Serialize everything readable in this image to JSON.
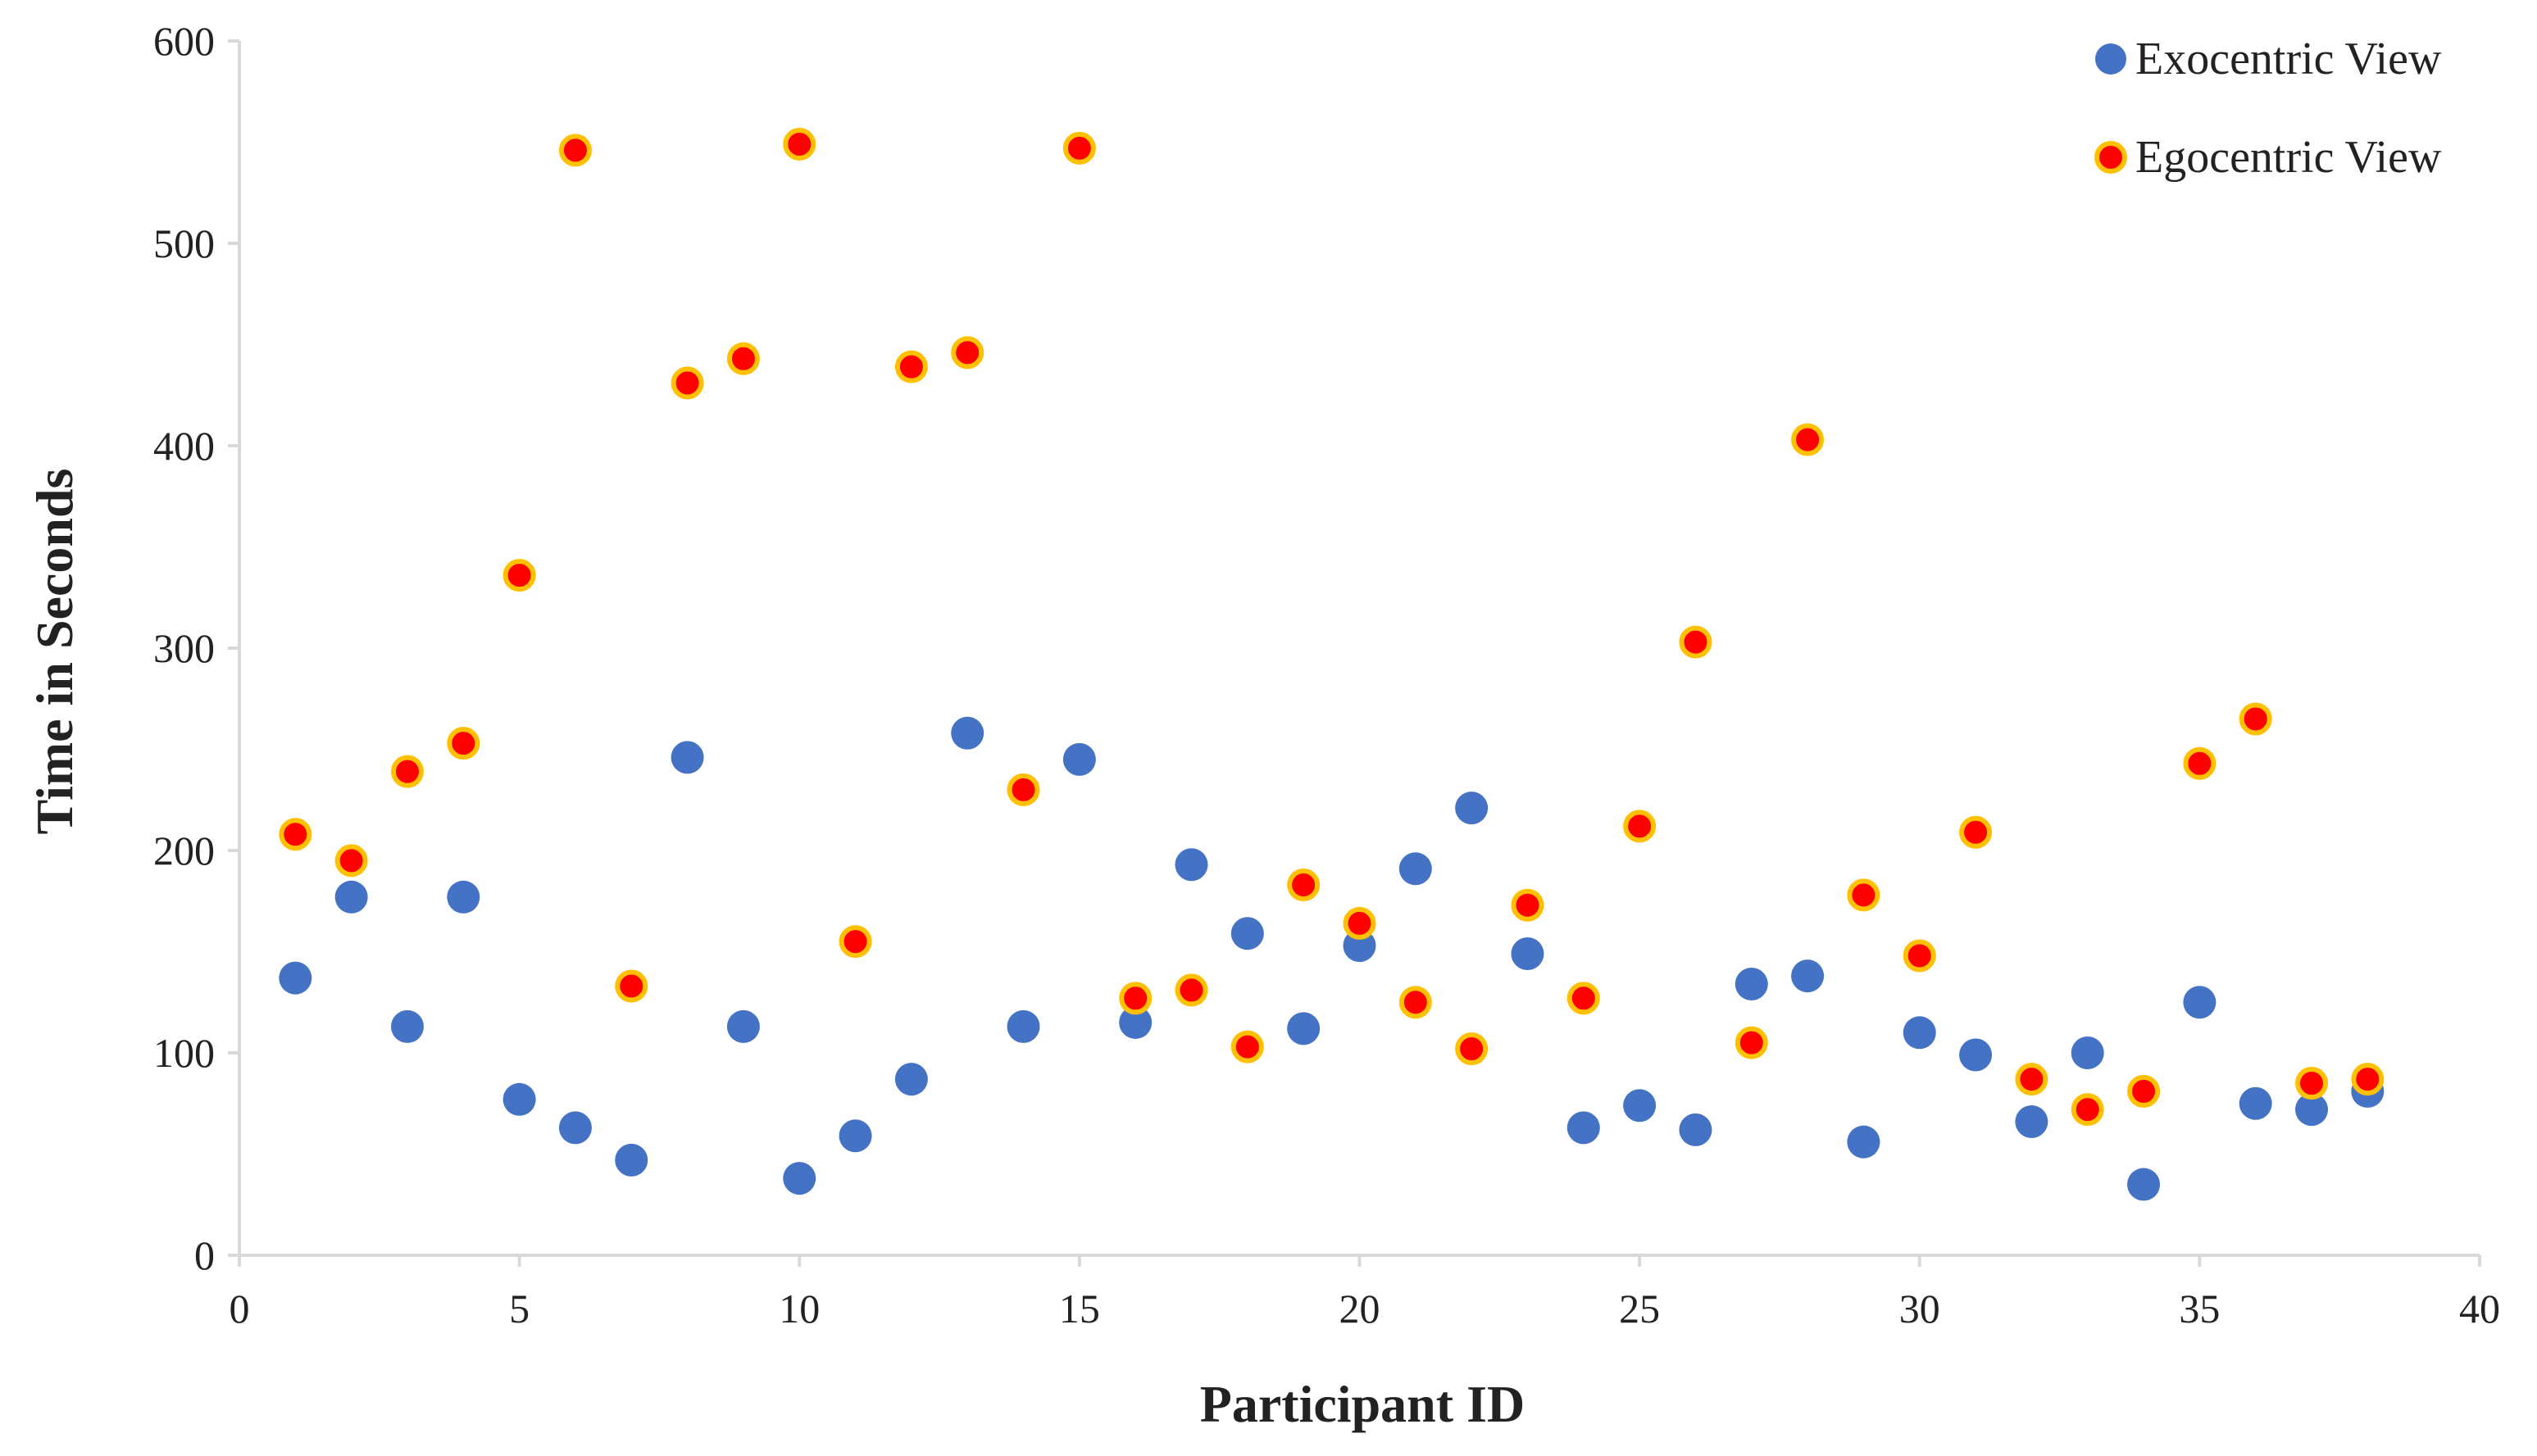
{
  "chart_data": {
    "type": "scatter",
    "title": "",
    "xlabel": "Participant ID",
    "ylabel": "Time in Seconds",
    "xlim": [
      0,
      40
    ],
    "ylim": [
      0,
      600
    ],
    "xticks": [
      0,
      5,
      10,
      15,
      20,
      25,
      30,
      35,
      40
    ],
    "yticks": [
      0,
      100,
      200,
      300,
      400,
      500,
      600
    ],
    "grid": false,
    "legend_position": "top-right",
    "x": [
      1,
      2,
      3,
      4,
      5,
      6,
      7,
      8,
      9,
      10,
      11,
      12,
      13,
      14,
      15,
      16,
      17,
      18,
      19,
      20,
      21,
      22,
      23,
      24,
      25,
      26,
      27,
      28,
      29,
      30,
      31,
      32,
      33,
      34,
      35,
      36,
      37,
      38
    ],
    "series": [
      {
        "name": "Exocentric View",
        "color": "#4472c4",
        "values": [
          137,
          177,
          113,
          177,
          77,
          63,
          47,
          246,
          113,
          38,
          59,
          87,
          258,
          113,
          245,
          115,
          193,
          159,
          112,
          153,
          191,
          221,
          149,
          63,
          74,
          62,
          134,
          138,
          56,
          110,
          99,
          66,
          100,
          35,
          125,
          75,
          72,
          81
        ]
      },
      {
        "name": "Egocentric View",
        "color": "#ff0000",
        "edge_color": "#ffc000",
        "values": [
          208,
          195,
          239,
          253,
          336,
          546,
          133,
          431,
          443,
          549,
          155,
          439,
          446,
          230,
          547,
          127,
          131,
          103,
          183,
          164,
          125,
          102,
          173,
          127,
          212,
          303,
          105,
          403,
          178,
          148,
          209,
          87,
          72,
          81,
          243,
          265,
          85,
          87
        ]
      }
    ]
  }
}
